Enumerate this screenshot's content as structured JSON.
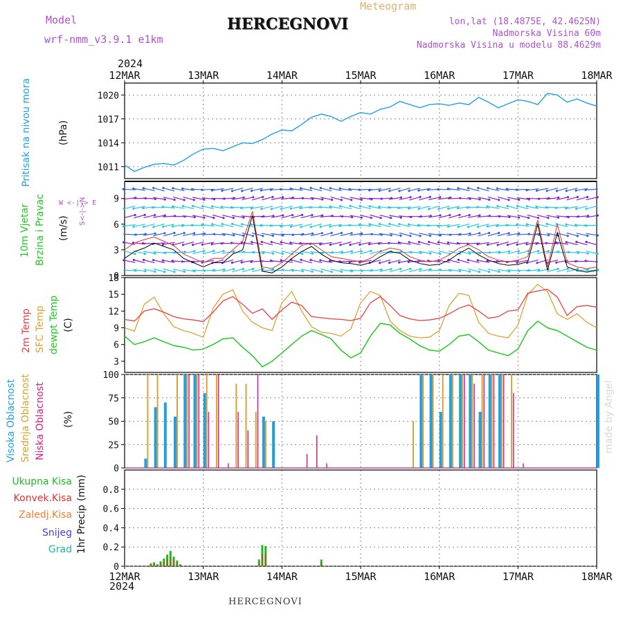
{
  "header": {
    "model_label": "Model",
    "model_name": "wrf-nmm_v3.9.1 e1km",
    "title": "HERCEGNOVI",
    "meteogram_label": "Meteogram",
    "lonlat": "lon,lat (18.4875E, 42.4625N)",
    "altitude": "Nadmorska Visina 60m",
    "model_altitude": "Nadmorska Visina u modelu 88.4629m",
    "year_top": "2024",
    "year_bottom": "2024",
    "footer_title": "HERCEGNOVI",
    "watermark": "made by Angel"
  },
  "colors": {
    "pressure": "#1ea0e6",
    "wind_speed": "#000000",
    "gust": "#e83030",
    "temp2m": "#e84040",
    "sfc_temp": "#e0a030",
    "dewpt": "#22c822",
    "cloud_high": "#1ea0e6",
    "cloud_mid": "#e0a030",
    "cloud_low": "#cc2288",
    "precip_total": "#22b822",
    "precip_conv": "#e83030",
    "precip_ice": "#f08030",
    "precip_snow": "#4040e0",
    "precip_hail": "#20b0b0"
  },
  "chart_data": [
    {
      "type": "line",
      "panel": "pressure",
      "ylabel_main": "Pritisak na nivou mora",
      "ylabel_unit": "(hPa)",
      "x_ticks": [
        "12MAR",
        "13MAR",
        "14MAR",
        "15MAR",
        "16MAR",
        "17MAR",
        "18MAR"
      ],
      "y_ticks": [
        1011,
        1014,
        1017,
        1020
      ],
      "ylim": [
        1009.5,
        1021.5
      ],
      "x": [
        0,
        3,
        6,
        9,
        12,
        15,
        18,
        21,
        24,
        27,
        30,
        33,
        36,
        39,
        42,
        45,
        48,
        51,
        54,
        57,
        60,
        63,
        66,
        69,
        72,
        75,
        78,
        81,
        84,
        87,
        90,
        93,
        96,
        99,
        102,
        105,
        108,
        111,
        114,
        117,
        120,
        123,
        126,
        129,
        132,
        135,
        138,
        141,
        144
      ],
      "series": [
        {
          "values": [
            1011.2,
            1010.4,
            1010.9,
            1011.3,
            1011.4,
            1011.2,
            1011.8,
            1012.6,
            1013.2,
            1013.3,
            1013.0,
            1013.5,
            1014.0,
            1013.9,
            1014.4,
            1015.1,
            1015.6,
            1015.5,
            1016.3,
            1017.2,
            1017.6,
            1017.3,
            1016.7,
            1017.3,
            1017.8,
            1017.6,
            1018.2,
            1018.5,
            1019.2,
            1018.8,
            1018.4,
            1018.8,
            1018.9,
            1018.7,
            1019.0,
            1018.8,
            1019.7,
            1019.1,
            1018.4,
            1018.9,
            1019.4,
            1019.2,
            1018.8,
            1020.2,
            1020.0,
            1019.1,
            1019.5,
            1019.0,
            1018.6
          ]
        }
      ]
    },
    {
      "type": "line",
      "panel": "wind",
      "ylabel_main": "10m Vjetar",
      "ylabel_sub": "Brzina i Pravac",
      "ylabel_unit": "(m/s)",
      "compass": "W <-|-> E",
      "compass_ns": "S<-|->N",
      "y_ticks": [
        0,
        3,
        6,
        9
      ],
      "ylim": [
        0,
        11
      ],
      "x": [
        0,
        3,
        6,
        9,
        12,
        15,
        18,
        21,
        24,
        27,
        30,
        33,
        36,
        39,
        42,
        45,
        48,
        51,
        54,
        57,
        60,
        63,
        66,
        69,
        72,
        75,
        78,
        81,
        84,
        87,
        90,
        93,
        96,
        99,
        102,
        105,
        108,
        111,
        114,
        117,
        120,
        123,
        126,
        129,
        132,
        135,
        138,
        141,
        144
      ],
      "series": [
        {
          "name": "speed",
          "values": [
            2.0,
            2.8,
            3.2,
            3.8,
            3.4,
            3.0,
            2.0,
            1.5,
            1.0,
            1.5,
            1.5,
            2.5,
            3.0,
            7.0,
            0.5,
            0.3,
            1.0,
            2.0,
            2.8,
            3.4,
            2.5,
            1.8,
            1.5,
            1.4,
            1.2,
            1.5,
            2.2,
            2.8,
            2.6,
            1.8,
            1.4,
            1.2,
            1.3,
            1.8,
            2.6,
            3.2,
            2.4,
            1.8,
            1.4,
            1.2,
            1.3,
            1.6,
            6.0,
            0.6,
            5.0,
            1.0,
            0.6,
            0.4,
            0.6
          ]
        },
        {
          "name": "gust",
          "values": [
            3.0,
            3.8,
            4.2,
            4.5,
            4.0,
            3.5,
            2.5,
            2.0,
            1.5,
            2.0,
            2.0,
            3.0,
            4.0,
            7.5,
            1.0,
            0.8,
            1.5,
            2.5,
            3.5,
            3.8,
            3.0,
            2.2,
            2.0,
            1.8,
            1.6,
            2.0,
            2.8,
            3.2,
            3.0,
            2.2,
            1.8,
            1.6,
            1.8,
            2.4,
            3.2,
            3.6,
            3.0,
            2.2,
            1.8,
            1.6,
            1.8,
            2.2,
            6.5,
            1.0,
            6.0,
            1.5,
            1.0,
            0.8,
            1.0
          ]
        }
      ]
    },
    {
      "type": "line",
      "panel": "temperature",
      "ylabel_a": "2m Temp",
      "ylabel_b": "SFC Temp",
      "ylabel_c": "dewpt Temp",
      "ylabel_unit": "(C)",
      "y_ticks": [
        3,
        6,
        9,
        12,
        15,
        18
      ],
      "ylim": [
        1,
        18
      ],
      "x": [
        0,
        3,
        6,
        9,
        12,
        15,
        18,
        21,
        24,
        27,
        30,
        33,
        36,
        39,
        42,
        45,
        48,
        51,
        54,
        57,
        60,
        63,
        66,
        69,
        72,
        75,
        78,
        81,
        84,
        87,
        90,
        93,
        96,
        99,
        102,
        105,
        108,
        111,
        114,
        117,
        120,
        123,
        126,
        129,
        132,
        135,
        138,
        141,
        144
      ],
      "series": [
        {
          "name": "2m Temp",
          "values": [
            10.5,
            10.2,
            12.0,
            12.4,
            11.8,
            11.0,
            10.6,
            10.4,
            10.1,
            11.8,
            13.8,
            14.6,
            13.2,
            11.6,
            12.4,
            10.5,
            12.2,
            13.6,
            13.0,
            11.0,
            10.8,
            10.6,
            10.5,
            10.3,
            10.7,
            13.5,
            14.6,
            13.0,
            11.2,
            10.6,
            10.3,
            10.4,
            10.7,
            11.5,
            12.5,
            13.1,
            12.0,
            10.7,
            11.0,
            12.0,
            12.2,
            15.2,
            15.6,
            15.9,
            14.5,
            11.2,
            12.8,
            13.0,
            12.7
          ]
        },
        {
          "name": "SFC Temp",
          "values": [
            9.0,
            8.4,
            13.2,
            14.5,
            11.5,
            9.2,
            8.5,
            8.0,
            7.3,
            12.5,
            15.0,
            15.8,
            12.0,
            10.0,
            9.0,
            8.5,
            13.5,
            15.5,
            12.0,
            9.2,
            8.2,
            8.0,
            7.5,
            8.8,
            13.5,
            15.5,
            14.8,
            10.2,
            8.5,
            7.5,
            7.2,
            7.3,
            8.5,
            13.0,
            15.2,
            14.8,
            10.0,
            8.0,
            7.5,
            7.2,
            9.5,
            15.0,
            16.8,
            15.5,
            11.5,
            10.5,
            11.5,
            10.0,
            9.0
          ]
        },
        {
          "name": "dewpt Temp",
          "values": [
            7.5,
            6.0,
            6.5,
            7.2,
            6.5,
            5.8,
            5.5,
            5.0,
            5.2,
            6.0,
            7.0,
            7.2,
            5.5,
            4.0,
            2.0,
            3.0,
            4.5,
            6.0,
            7.5,
            8.5,
            7.8,
            7.0,
            5.0,
            3.6,
            4.5,
            7.5,
            9.8,
            9.5,
            8.0,
            7.0,
            5.8,
            5.0,
            4.8,
            6.0,
            7.5,
            7.8,
            6.5,
            5.0,
            4.5,
            4.0,
            5.2,
            8.5,
            10.2,
            9.0,
            8.5,
            7.5,
            6.5,
            5.5,
            5.0
          ]
        }
      ]
    },
    {
      "type": "bar",
      "panel": "clouds",
      "ylabel_a": "Visoka Oblacnost",
      "ylabel_b": "Srednja Oblacnost",
      "ylabel_c": "Niska Oblacnost",
      "ylabel_unit": "(%)",
      "y_ticks": [
        0,
        25,
        50,
        75,
        100
      ],
      "ylim": [
        0,
        100
      ],
      "x": [
        0,
        3,
        6,
        9,
        12,
        15,
        18,
        21,
        24,
        27,
        30,
        33,
        36,
        39,
        42,
        45,
        48,
        51,
        54,
        57,
        60,
        63,
        66,
        69,
        72,
        75,
        78,
        81,
        84,
        87,
        90,
        93,
        96,
        99,
        102,
        105,
        108,
        111,
        114,
        117,
        120,
        123,
        126,
        129,
        132,
        135,
        138,
        141,
        144
      ],
      "series": [
        {
          "name": "Visoka",
          "values": [
            0,
            0,
            10,
            65,
            70,
            55,
            100,
            100,
            80,
            0,
            0,
            0,
            0,
            0,
            55,
            50,
            0,
            0,
            0,
            0,
            0,
            0,
            0,
            0,
            0,
            0,
            0,
            0,
            0,
            0,
            100,
            100,
            60,
            100,
            100,
            100,
            60,
            100,
            100,
            0,
            0,
            0,
            0,
            0,
            0,
            0,
            0,
            0,
            100
          ]
        },
        {
          "name": "Srednja",
          "values": [
            0,
            0,
            100,
            100,
            0,
            100,
            100,
            100,
            100,
            100,
            0,
            90,
            90,
            60,
            50,
            0,
            0,
            0,
            0,
            0,
            0,
            0,
            0,
            0,
            0,
            0,
            0,
            0,
            0,
            50,
            100,
            100,
            100,
            100,
            100,
            100,
            100,
            100,
            100,
            100,
            0,
            0,
            0,
            0,
            0,
            0,
            0,
            0,
            0
          ]
        },
        {
          "name": "Niska",
          "values": [
            0,
            0,
            0,
            0,
            0,
            0,
            100,
            100,
            60,
            100,
            5,
            60,
            40,
            100,
            0,
            0,
            0,
            0,
            15,
            35,
            5,
            0,
            0,
            0,
            0,
            0,
            0,
            0,
            0,
            0,
            0,
            0,
            0,
            0,
            100,
            90,
            100,
            100,
            100,
            80,
            5,
            0,
            0,
            0,
            0,
            0,
            0,
            0,
            0
          ]
        }
      ]
    },
    {
      "type": "bar",
      "panel": "precip",
      "legend": [
        "Ukupna Kisa",
        "Konvek.Kisa",
        "Zaledj.Kisa",
        "Snijeg",
        "Grad"
      ],
      "ylabel_main": "1hr Precip",
      "ylabel_unit": "(mm)",
      "y_ticks": [
        0,
        0.2,
        0.4,
        0.6,
        0.8
      ],
      "ylim": [
        0,
        1.0
      ],
      "x": [
        8,
        9,
        10,
        11,
        12,
        13,
        14,
        15,
        16,
        17,
        41,
        42,
        43,
        60
      ],
      "values": [
        0.03,
        0.04,
        0.02,
        0.05,
        0.08,
        0.12,
        0.16,
        0.1,
        0.06,
        0.02,
        0.07,
        0.22,
        0.21,
        0.07
      ],
      "x_ticks_bottom": [
        "12MAR",
        "13MAR",
        "14MAR",
        "15MAR",
        "16MAR",
        "17MAR",
        "18MAR"
      ]
    }
  ]
}
